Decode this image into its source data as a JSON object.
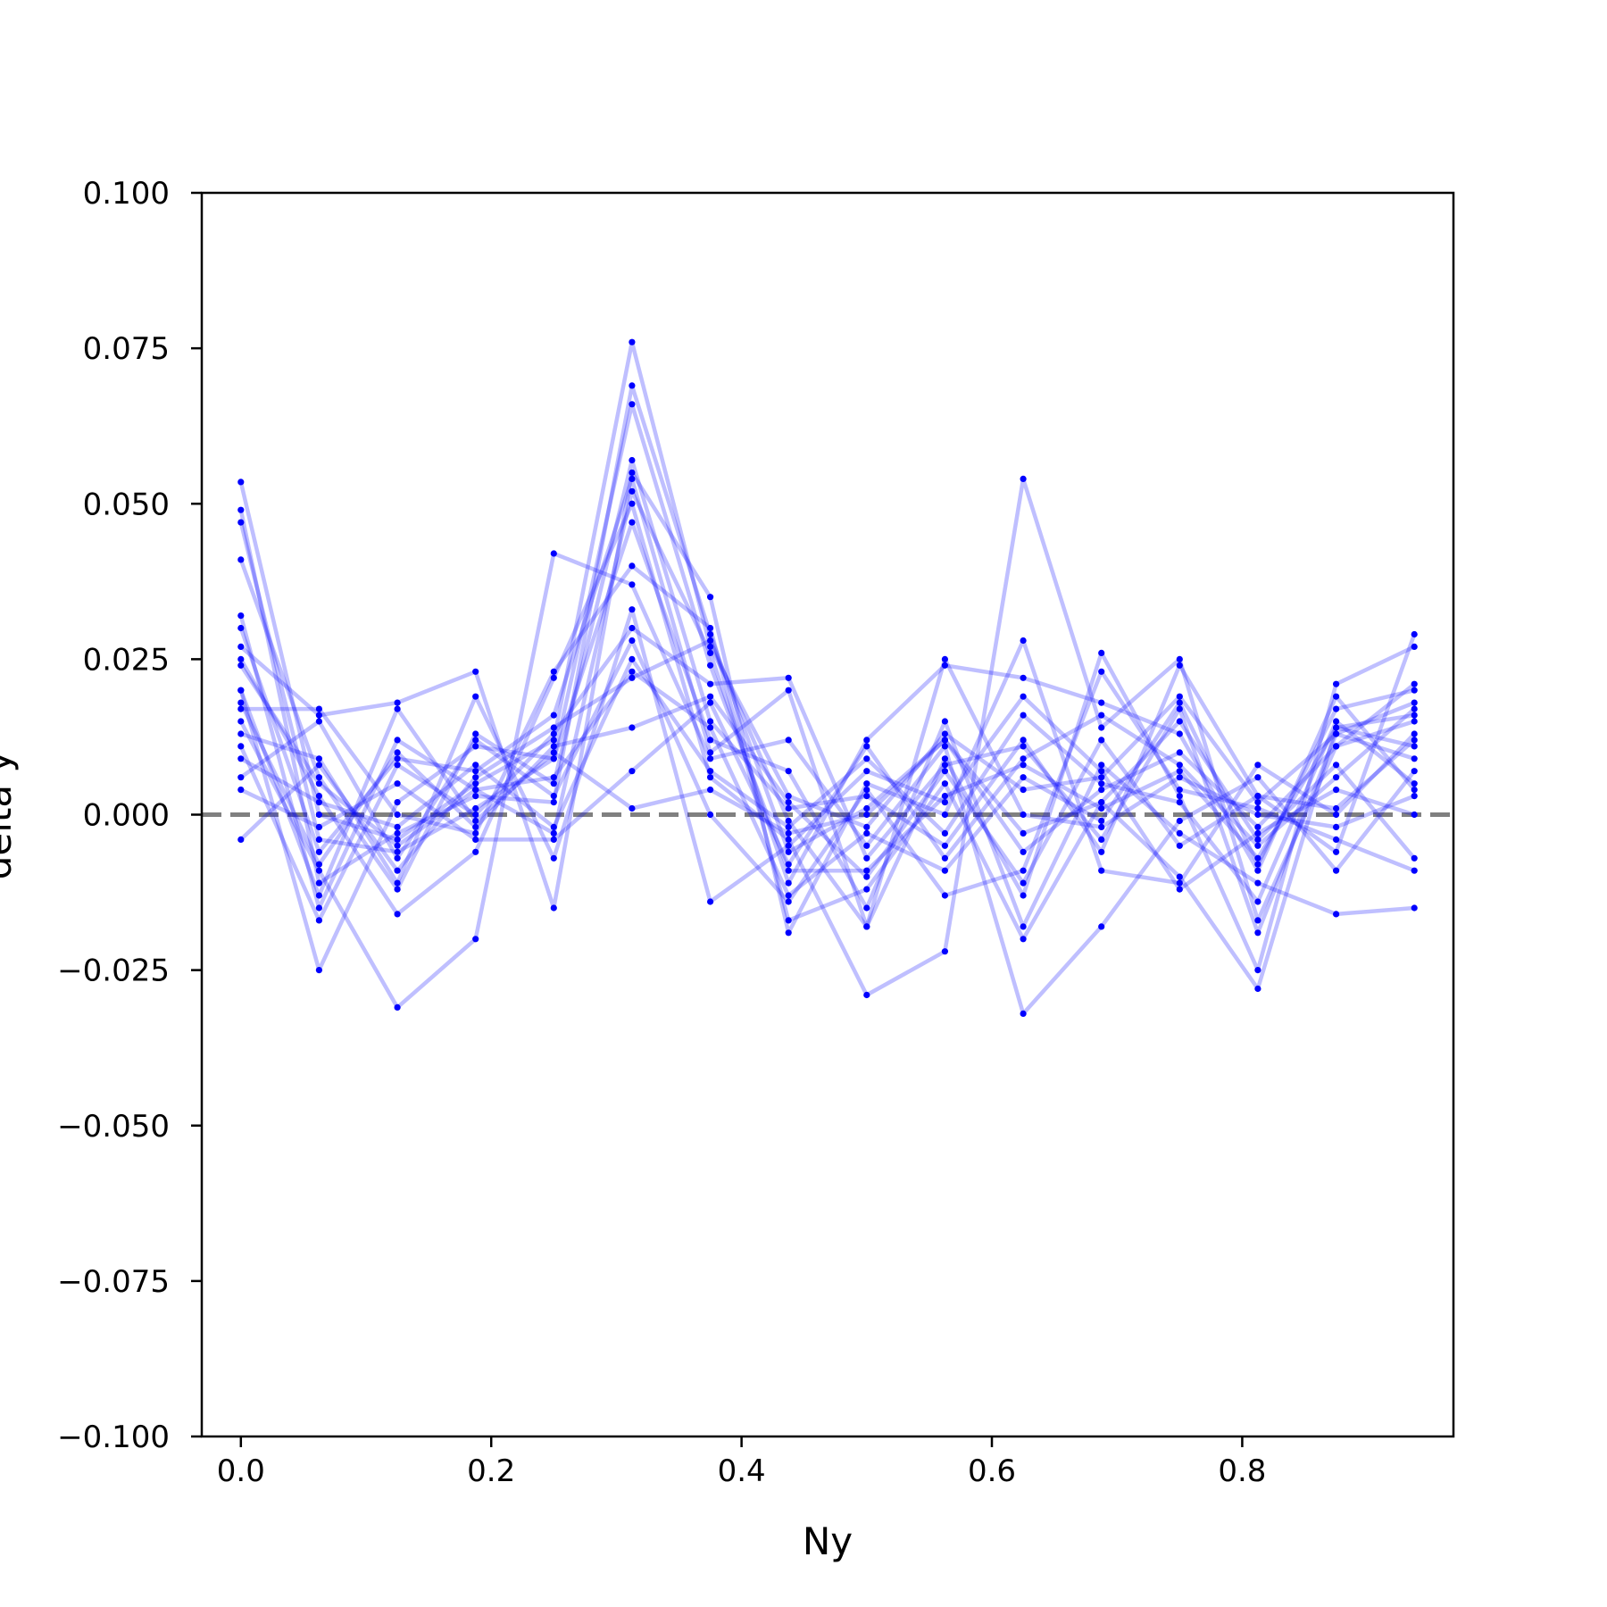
{
  "chart_data": {
    "type": "line",
    "xlabel": "Ny",
    "ylabel": "delta y",
    "xlim": [
      -0.03125,
      0.96875
    ],
    "ylim": [
      -0.1,
      0.1
    ],
    "xticks": [
      0.0,
      0.2,
      0.4,
      0.6,
      0.8
    ],
    "xtick_labels": [
      "0.0",
      "0.2",
      "0.4",
      "0.6",
      "0.8"
    ],
    "yticks": [
      -0.1,
      -0.075,
      -0.05,
      -0.025,
      0.0,
      0.025,
      0.05,
      0.075,
      0.1
    ],
    "ytick_labels": [
      "−0.100",
      "−0.075",
      "−0.050",
      "−0.025",
      "0.000",
      "0.025",
      "0.050",
      "0.075",
      "0.100"
    ],
    "grid": false,
    "reference_line": {
      "y": 0.0,
      "style": "dashed",
      "color": "#808080"
    },
    "series_color": "#0000ff",
    "x": [
      0.0,
      0.0625,
      0.125,
      0.1875,
      0.25,
      0.3125,
      0.375,
      0.4375,
      0.5,
      0.5625,
      0.625,
      0.6875,
      0.75,
      0.8125,
      0.875,
      0.9375
    ],
    "series": [
      {
        "values": [
          0.0535,
          0.0,
          -0.004,
          0.005,
          0.012,
          0.076,
          0.027,
          0.003,
          -0.002,
          0.013,
          0.004,
          0.006,
          0.019,
          0.002,
          0.013,
          0.018
        ]
      },
      {
        "values": [
          0.049,
          -0.011,
          -0.003,
          0.003,
          0.002,
          0.069,
          0.029,
          -0.006,
          0.001,
          0.012,
          -0.006,
          0.004,
          0.01,
          -0.002,
          0.011,
          0.015
        ]
      },
      {
        "values": [
          0.047,
          -0.004,
          -0.006,
          0.001,
          0.009,
          0.066,
          0.024,
          -0.009,
          -0.009,
          0.003,
          0.008,
          0.001,
          0.007,
          -0.007,
          0.014,
          0.011
        ]
      },
      {
        "values": [
          0.041,
          0.006,
          -0.012,
          0.013,
          0.005,
          0.057,
          0.015,
          0.001,
          0.003,
          -0.005,
          0.012,
          -0.006,
          0.024,
          0.003,
          -0.006,
          0.029
        ]
      },
      {
        "values": [
          0.032,
          -0.015,
          0.012,
          0.004,
          -0.003,
          0.052,
          0.026,
          -0.011,
          0.012,
          0.024,
          0.022,
          0.018,
          0.013,
          -0.009,
          0.019,
          0.004
        ]
      },
      {
        "values": [
          0.03,
          -0.006,
          0.009,
          0.007,
          0.016,
          0.054,
          0.01,
          0.02,
          -0.018,
          0.009,
          -0.013,
          0.026,
          0.003,
          -0.025,
          0.021,
          0.027
        ]
      },
      {
        "values": [
          0.027,
          0.016,
          0.018,
          0.023,
          -0.015,
          0.055,
          0.035,
          -0.019,
          0.005,
          0.0,
          0.028,
          -0.009,
          -0.011,
          0.008,
          0.0,
          0.013
        ]
      },
      {
        "values": [
          0.025,
          0.003,
          -0.016,
          -0.006,
          0.022,
          0.05,
          0.006,
          -0.004,
          -0.029,
          -0.022,
          0.054,
          0.014,
          0.025,
          -0.017,
          0.011,
          0.021
        ]
      },
      {
        "values": [
          0.02,
          -0.025,
          0.002,
          0.011,
          0.009,
          0.047,
          0.012,
          0.007,
          -0.015,
          0.015,
          -0.018,
          0.008,
          -0.003,
          -0.011,
          -0.016,
          -0.015
        ]
      },
      {
        "values": [
          0.017,
          0.017,
          0.0,
          -0.003,
          0.023,
          0.04,
          0.03,
          -0.017,
          -0.012,
          0.005,
          -0.02,
          0.002,
          -0.01,
          -0.028,
          0.014,
          0.016
        ]
      },
      {
        "values": [
          0.015,
          -0.009,
          -0.031,
          -0.02,
          0.042,
          0.037,
          0.009,
          0.012,
          -0.005,
          0.011,
          -0.032,
          -0.018,
          -0.001,
          0.006,
          -0.009,
          0.007
        ]
      },
      {
        "values": [
          0.013,
          0.009,
          -0.011,
          0.019,
          -0.007,
          0.033,
          -0.014,
          -0.005,
          0.007,
          0.002,
          0.019,
          0.007,
          -0.012,
          -0.003,
          0.004,
          0.0
        ]
      },
      {
        "values": [
          0.011,
          -0.017,
          0.008,
          0.0,
          0.013,
          0.03,
          0.021,
          0.022,
          -0.007,
          0.008,
          0.011,
          -0.004,
          0.017,
          -0.019,
          0.013,
          0.009
        ]
      },
      {
        "values": [
          0.006,
          0.015,
          -0.007,
          0.012,
          0.003,
          0.028,
          0.0,
          -0.014,
          0.004,
          -0.013,
          -0.009,
          0.023,
          0.004,
          0.001,
          -0.004,
          -0.009
        ]
      },
      {
        "values": [
          0.004,
          -0.002,
          0.005,
          -0.004,
          -0.004,
          0.007,
          0.018,
          -0.008,
          0.011,
          -0.007,
          0.009,
          0.016,
          0.008,
          -0.005,
          0.006,
          0.017
        ]
      },
      {
        "values": [
          -0.004,
          0.008,
          -0.009,
          0.006,
          0.014,
          0.022,
          0.028,
          -0.001,
          -0.018,
          0.025,
          0.0,
          -0.002,
          0.006,
          0.0,
          -0.002,
          0.003
        ]
      },
      {
        "values": [
          0.02,
          -0.013,
          0.017,
          -0.001,
          0.01,
          0.001,
          0.004,
          -0.003,
          0.0,
          0.012,
          -0.003,
          0.002,
          0.015,
          -0.004,
          0.008,
          -0.007
        ]
      },
      {
        "values": [
          0.024,
          0.005,
          -0.005,
          0.004,
          0.006,
          0.023,
          0.014,
          -0.013,
          -0.003,
          -0.009,
          0.006,
          -0.001,
          0.018,
          -0.008,
          0.017,
          0.02
        ]
      },
      {
        "values": [
          0.018,
          -0.008,
          0.01,
          -0.002,
          0.011,
          0.014,
          0.019,
          0.002,
          -0.01,
          0.007,
          -0.011,
          0.012,
          -0.005,
          0.003,
          0.001,
          0.012
        ]
      },
      {
        "values": [
          0.009,
          0.002,
          -0.002,
          0.008,
          -0.002,
          0.025,
          0.007,
          -0.002,
          0.009,
          -0.003,
          0.016,
          0.005,
          0.002,
          -0.014,
          0.015,
          0.005
        ]
      }
    ]
  }
}
